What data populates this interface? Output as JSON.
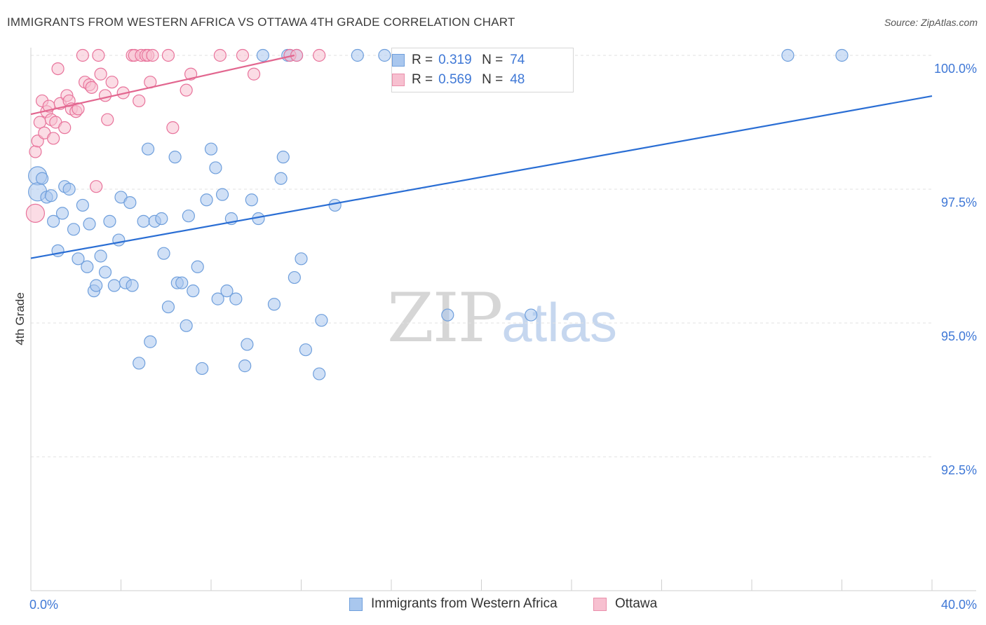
{
  "header": {
    "title": "IMMIGRANTS FROM WESTERN AFRICA VS OTTAWA 4TH GRADE CORRELATION CHART",
    "source": "Source: ZipAtlas.com"
  },
  "watermark": {
    "zip": "ZIP",
    "atlas": "atlas"
  },
  "legend_top": {
    "rows": [
      {
        "r_label": "R =",
        "r_value": "0.319",
        "n_label": "N =",
        "n_value": "74",
        "color": "#a9c7ee",
        "border": "#6f9fdc"
      },
      {
        "r_label": "R =",
        "r_value": "0.569",
        "n_label": "N =",
        "n_value": "48",
        "color": "#f7c0d0",
        "border": "#ea8fab"
      }
    ]
  },
  "legend_bottom": {
    "items": [
      {
        "label": "Immigrants from Western Africa",
        "color": "#a9c7ee",
        "border": "#6f9fdc"
      },
      {
        "label": "Ottawa",
        "color": "#f7c0d0",
        "border": "#ea8fab"
      }
    ]
  },
  "chart_data": {
    "type": "scatter",
    "title": "IMMIGRANTS FROM WESTERN AFRICA VS OTTAWA 4TH GRADE CORRELATION CHART",
    "xlabel": "",
    "ylabel": "4th Grade",
    "xlim": [
      0,
      40
    ],
    "ylim": [
      90.5,
      100.2
    ],
    "x_tick_labels": [
      "0.0%",
      "40.0%"
    ],
    "y_ticks": [
      92.5,
      95.0,
      97.5,
      100.0
    ],
    "y_tick_labels": [
      "92.5%",
      "95.0%",
      "97.5%",
      "100.0%"
    ],
    "grid": true,
    "legend_position": "bottom",
    "series": [
      {
        "name": "Immigrants from Western Africa",
        "color": "#6f9fdc",
        "fill": "#a9c7ee",
        "trend": {
          "x": [
            0,
            40
          ],
          "y": [
            96.21,
            99.24
          ]
        },
        "points": [
          [
            0.3,
            97.75
          ],
          [
            0.3,
            97.45
          ],
          [
            0.5,
            97.7
          ],
          [
            0.7,
            97.35
          ],
          [
            0.9,
            97.38
          ],
          [
            1.0,
            96.9
          ],
          [
            1.2,
            96.35
          ],
          [
            1.4,
            97.05
          ],
          [
            1.5,
            97.55
          ],
          [
            1.7,
            97.5
          ],
          [
            1.9,
            96.75
          ],
          [
            2.1,
            96.2
          ],
          [
            2.3,
            97.2
          ],
          [
            2.5,
            96.05
          ],
          [
            2.6,
            96.85
          ],
          [
            2.8,
            95.6
          ],
          [
            2.9,
            95.7
          ],
          [
            3.1,
            96.25
          ],
          [
            3.3,
            95.95
          ],
          [
            3.5,
            96.9
          ],
          [
            3.7,
            95.7
          ],
          [
            3.9,
            96.55
          ],
          [
            4.0,
            97.35
          ],
          [
            4.2,
            95.75
          ],
          [
            4.4,
            97.25
          ],
          [
            4.5,
            95.7
          ],
          [
            4.8,
            94.25
          ],
          [
            5.0,
            96.9
          ],
          [
            5.2,
            98.25
          ],
          [
            5.3,
            94.65
          ],
          [
            5.5,
            96.9
          ],
          [
            5.8,
            96.95
          ],
          [
            5.9,
            96.3
          ],
          [
            6.1,
            95.3
          ],
          [
            6.4,
            98.1
          ],
          [
            6.5,
            95.75
          ],
          [
            6.7,
            95.75
          ],
          [
            6.9,
            94.95
          ],
          [
            7.0,
            97.0
          ],
          [
            7.2,
            95.6
          ],
          [
            7.4,
            96.05
          ],
          [
            7.6,
            94.15
          ],
          [
            7.8,
            97.3
          ],
          [
            8.0,
            98.25
          ],
          [
            8.2,
            97.9
          ],
          [
            8.3,
            95.45
          ],
          [
            8.5,
            97.4
          ],
          [
            8.7,
            95.6
          ],
          [
            8.9,
            96.95
          ],
          [
            9.1,
            95.45
          ],
          [
            9.5,
            94.2
          ],
          [
            9.6,
            94.6
          ],
          [
            9.8,
            97.3
          ],
          [
            10.1,
            96.95
          ],
          [
            10.3,
            100.0
          ],
          [
            10.8,
            95.35
          ],
          [
            11.1,
            97.7
          ],
          [
            11.2,
            98.1
          ],
          [
            11.4,
            100.0
          ],
          [
            11.5,
            100.0
          ],
          [
            11.7,
            95.85
          ],
          [
            12.0,
            96.2
          ],
          [
            12.2,
            94.5
          ],
          [
            12.8,
            94.05
          ],
          [
            12.9,
            95.05
          ],
          [
            13.5,
            97.2
          ],
          [
            14.5,
            100.0
          ],
          [
            15.7,
            100.0
          ],
          [
            16.5,
            100.0
          ],
          [
            18.5,
            95.15
          ],
          [
            22.2,
            95.15
          ],
          [
            33.6,
            100.0
          ],
          [
            36.0,
            100.0
          ],
          [
            11.8,
            100.0
          ]
        ]
      },
      {
        "name": "Ottawa",
        "color": "#e8739b",
        "fill": "#f7c0d0",
        "trend": {
          "x": [
            0,
            11.7
          ],
          "y": [
            98.9,
            100.0
          ]
        },
        "points": [
          [
            0.2,
            97.05
          ],
          [
            0.2,
            98.2
          ],
          [
            0.3,
            98.4
          ],
          [
            0.4,
            98.75
          ],
          [
            0.5,
            99.15
          ],
          [
            0.6,
            98.55
          ],
          [
            0.7,
            98.95
          ],
          [
            0.8,
            99.05
          ],
          [
            0.9,
            98.8
          ],
          [
            1.0,
            98.45
          ],
          [
            1.1,
            98.75
          ],
          [
            1.2,
            99.75
          ],
          [
            1.3,
            99.1
          ],
          [
            1.5,
            98.65
          ],
          [
            1.6,
            99.25
          ],
          [
            1.7,
            99.15
          ],
          [
            1.8,
            99.0
          ],
          [
            2.0,
            98.95
          ],
          [
            2.1,
            99.0
          ],
          [
            2.3,
            100.0
          ],
          [
            2.4,
            99.5
          ],
          [
            2.6,
            99.45
          ],
          [
            2.7,
            99.4
          ],
          [
            2.9,
            97.55
          ],
          [
            3.0,
            100.0
          ],
          [
            3.1,
            99.65
          ],
          [
            3.3,
            99.25
          ],
          [
            3.4,
            98.8
          ],
          [
            3.6,
            99.5
          ],
          [
            4.1,
            99.3
          ],
          [
            4.5,
            100.0
          ],
          [
            4.6,
            100.0
          ],
          [
            4.8,
            99.15
          ],
          [
            4.9,
            100.0
          ],
          [
            5.1,
            100.0
          ],
          [
            5.2,
            100.0
          ],
          [
            5.3,
            99.5
          ],
          [
            5.4,
            100.0
          ],
          [
            6.1,
            100.0
          ],
          [
            6.3,
            98.65
          ],
          [
            6.9,
            99.35
          ],
          [
            7.1,
            99.65
          ],
          [
            8.4,
            100.0
          ],
          [
            9.4,
            100.0
          ],
          [
            9.9,
            99.65
          ],
          [
            11.5,
            100.0
          ],
          [
            11.8,
            100.0
          ],
          [
            12.8,
            100.0
          ]
        ]
      }
    ]
  }
}
